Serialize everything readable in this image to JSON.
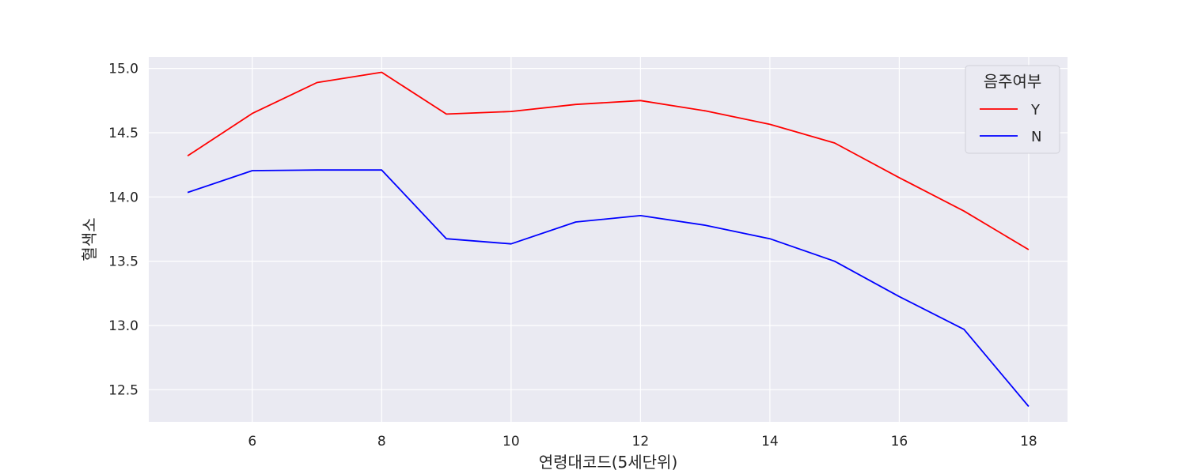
{
  "chart_data": {
    "type": "line",
    "xlabel": "연령대코드(5세단위)",
    "ylabel": "혈색소",
    "x": [
      5,
      6,
      7,
      8,
      9,
      10,
      11,
      12,
      13,
      14,
      15,
      16,
      17,
      18
    ],
    "xlim": [
      4.4,
      18.6
    ],
    "ylim": [
      12.25,
      15.09
    ],
    "xticks": [
      6,
      8,
      10,
      12,
      14,
      16,
      18
    ],
    "yticks": [
      12.5,
      13.0,
      13.5,
      14.0,
      14.5,
      15.0
    ],
    "grid": true,
    "legend": {
      "title": "음주여부",
      "placement": "upper-right"
    },
    "series": [
      {
        "name": "Y",
        "color": "#ff0000",
        "values": [
          14.32,
          14.65,
          14.89,
          14.97,
          14.645,
          14.665,
          14.72,
          14.75,
          14.67,
          14.565,
          14.42,
          14.15,
          13.89,
          13.59
        ]
      },
      {
        "name": "N",
        "color": "#0000ff",
        "values": [
          14.035,
          14.205,
          14.21,
          14.21,
          13.675,
          13.635,
          13.805,
          13.855,
          13.78,
          13.675,
          13.5,
          13.225,
          12.97,
          12.37
        ]
      }
    ]
  }
}
